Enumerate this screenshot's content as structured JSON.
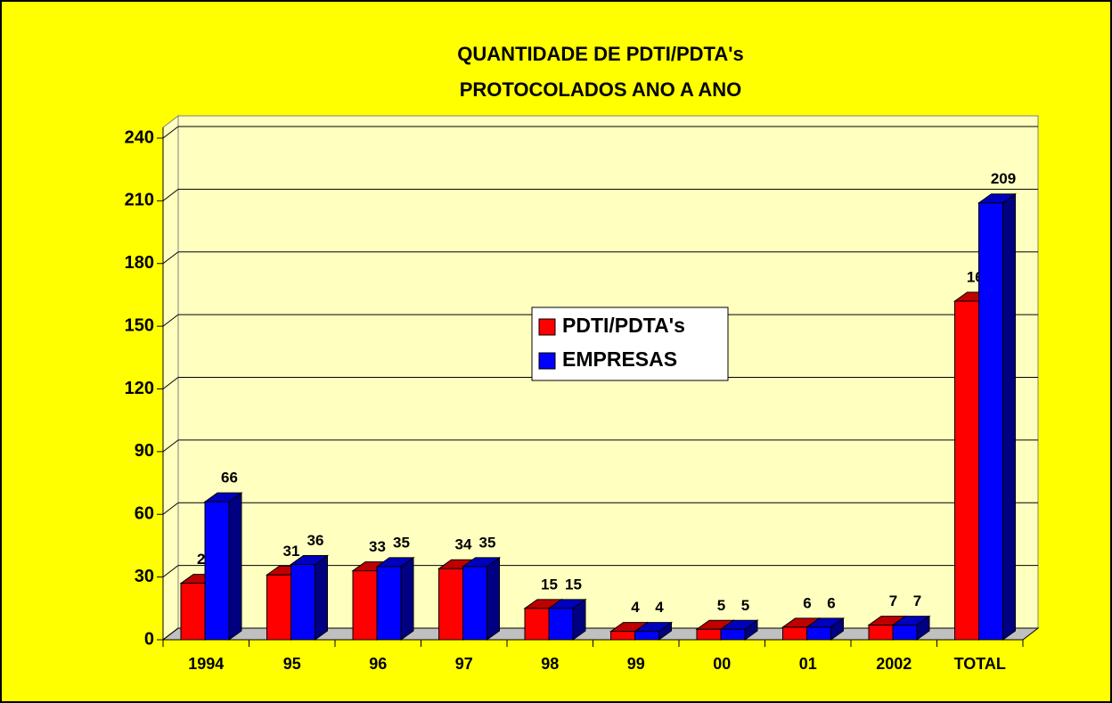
{
  "chart_data": {
    "type": "bar3d",
    "title": [
      "QUANTIDADE DE PDTI/PDTA's",
      "PROTOCOLADOS ANO A ANO"
    ],
    "categories": [
      "1994",
      "95",
      "96",
      "97",
      "98",
      "99",
      "00",
      "01",
      "2002",
      "TOTAL"
    ],
    "series": [
      {
        "name": "PDTI/PDTA's",
        "color": "#ff0000",
        "values": [
          27,
          31,
          33,
          34,
          15,
          4,
          5,
          6,
          7,
          162
        ]
      },
      {
        "name": "EMPRESAS",
        "color": "#0000ff",
        "values": [
          66,
          36,
          35,
          35,
          15,
          4,
          5,
          6,
          7,
          209
        ]
      }
    ],
    "ylim": [
      0,
      240
    ],
    "yticks": [
      0,
      30,
      60,
      90,
      120,
      150,
      180,
      210,
      240
    ],
    "grid": true,
    "legend": "center"
  }
}
